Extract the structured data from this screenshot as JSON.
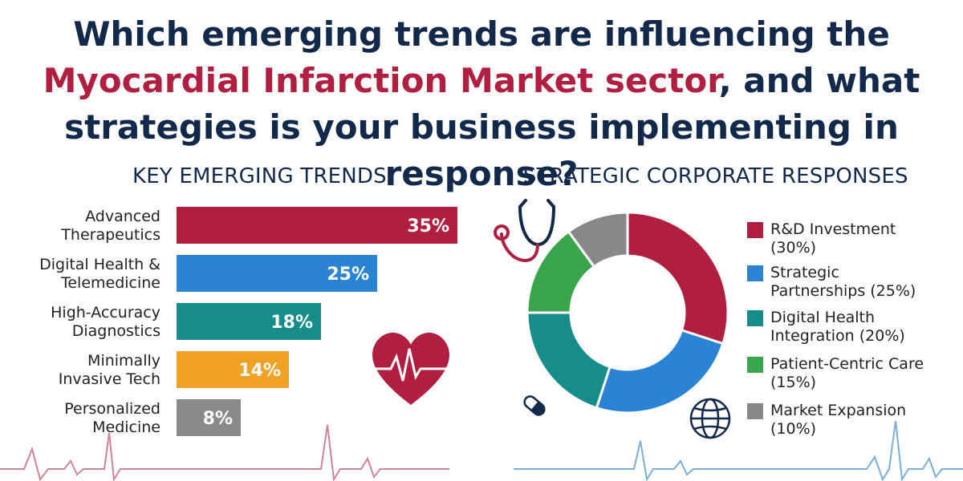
{
  "headline": {
    "part1": "Which emerging trends are influencing the ",
    "highlight": "Myocardial Infarction Market sector",
    "part2": ", and what strategies is your business implementing in response?"
  },
  "colors": {
    "navy": "#13294b",
    "crimson": "#b01e40",
    "blue": "#2b83d6",
    "teal": "#178d8b",
    "orange": "#f0a227",
    "gray": "#8a8a8a",
    "green": "#3aa64c",
    "darkgray": "#888888"
  },
  "chart_data": [
    {
      "type": "bar",
      "orientation": "horizontal",
      "title": "KEY EMERGING TRENDS",
      "categories": [
        [
          "Advanced",
          "Therapeutics"
        ],
        [
          "Digital Health &",
          "Telemedicine"
        ],
        [
          "High-Accuracy",
          "Diagnostics"
        ],
        [
          "Minimally",
          "Invasive Tech"
        ],
        [
          "Personalized",
          "Medicine"
        ]
      ],
      "values": [
        35,
        25,
        18,
        14,
        8
      ],
      "value_labels": [
        "35%",
        "25%",
        "18%",
        "14%",
        "8%"
      ],
      "colors": [
        "#b01e40",
        "#2b83d6",
        "#178d8b",
        "#f0a227",
        "#8a8a8a"
      ],
      "xlim": [
        0,
        40
      ],
      "grid": false
    },
    {
      "type": "pie",
      "donut": true,
      "title": "STRATEGIC CORPORATE RESPONSES",
      "labels": [
        [
          "R&D Investment",
          "(30%)"
        ],
        [
          "Strategic",
          "Partnerships (25%)"
        ],
        [
          "Digital Health",
          "Integration (20%)"
        ],
        [
          "Patient-Centric Care",
          "(15%)"
        ],
        [
          "Market Expansion",
          "(10%)"
        ]
      ],
      "values": [
        30,
        25,
        20,
        15,
        10
      ],
      "colors": [
        "#b01e40",
        "#2b83d6",
        "#178d8b",
        "#3aa64c",
        "#888888"
      ],
      "legend": "right"
    }
  ],
  "icons": {
    "heart": "heart-pulse-icon",
    "stethoscope": "stethoscope-icon",
    "pill": "pill-icon",
    "globe": "globe-icon",
    "ecg": "ecg-line-icon"
  }
}
